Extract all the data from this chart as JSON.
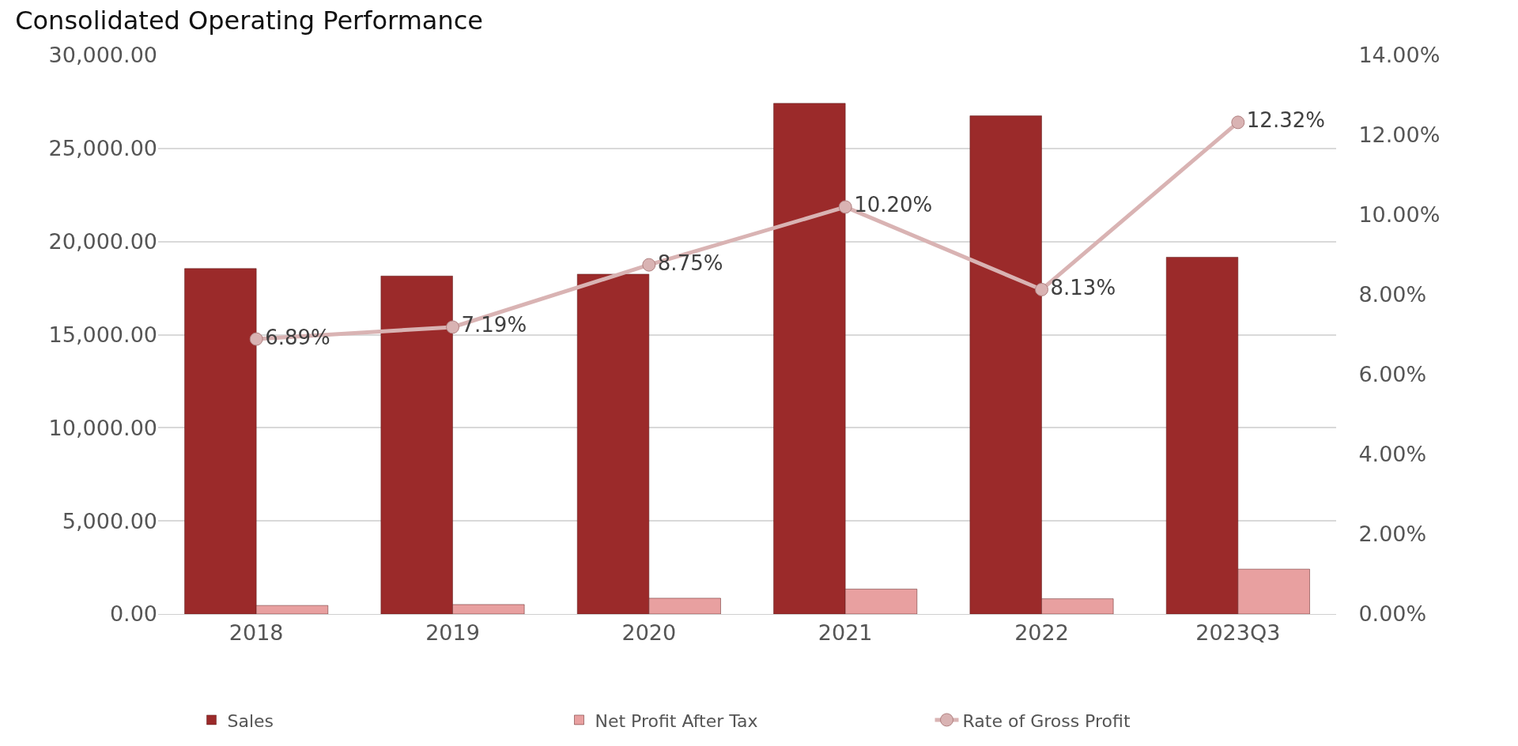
{
  "chart_data": {
    "type": "bar",
    "title": "Consolidated Operating Performance",
    "categories": [
      "2018",
      "2019",
      "2020",
      "2021",
      "2022",
      "2023Q3"
    ],
    "series": [
      {
        "name": "Sales",
        "color": "#9b2a2a",
        "values": [
          18550,
          18150,
          18250,
          27420,
          26750,
          19160
        ]
      },
      {
        "name": "Net Profit After Tax",
        "color": "#e8a0a0",
        "values": [
          460,
          510,
          850,
          1340,
          820,
          2410
        ]
      },
      {
        "name": "Rate of Gross Profit",
        "type": "line",
        "axis": "y2",
        "color": "#d9b3b3",
        "marker": "circle",
        "values": [
          6.89,
          7.19,
          8.75,
          10.2,
          8.13,
          12.32
        ],
        "value_labels": [
          "6.89%",
          "7.19%",
          "8.75%",
          "10.20%",
          "8.13%",
          "12.32%"
        ]
      }
    ],
    "ylim": [
      0,
      30000
    ],
    "yticks": [
      {
        "value": 0,
        "label": "0.00"
      },
      {
        "value": 5000,
        "label": "5,000.00"
      },
      {
        "value": 10000,
        "label": "10,000.00"
      },
      {
        "value": 15000,
        "label": "15,000.00"
      },
      {
        "value": 20000,
        "label": "20,000.00"
      },
      {
        "value": 25000,
        "label": "25,000.00"
      },
      {
        "value": 30000,
        "label": "30,000.00"
      }
    ],
    "y2lim": [
      0,
      14
    ],
    "y2ticks": [
      {
        "value": 0,
        "label": "0.00%"
      },
      {
        "value": 2,
        "label": "2.00%"
      },
      {
        "value": 4,
        "label": "4.00%"
      },
      {
        "value": 6,
        "label": "6.00%"
      },
      {
        "value": 8,
        "label": "8.00%"
      },
      {
        "value": 10,
        "label": "10.00%"
      },
      {
        "value": 12,
        "label": "12.00%"
      },
      {
        "value": 14,
        "label": "14.00%"
      }
    ],
    "grid": "y",
    "legend": "bottom"
  }
}
